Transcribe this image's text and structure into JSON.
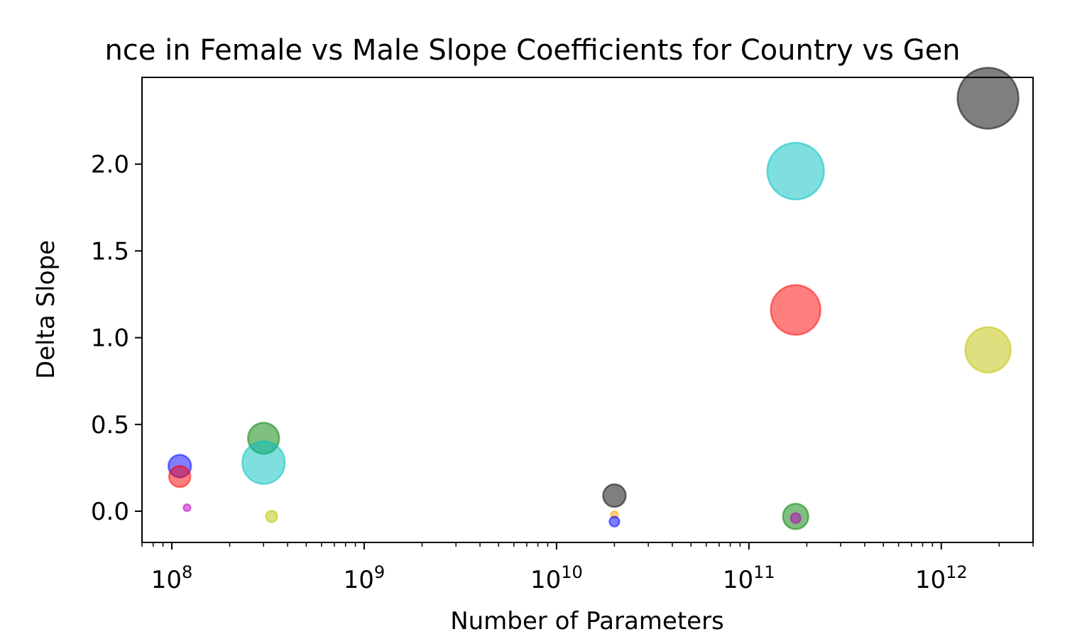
{
  "chart_data": {
    "type": "scatter",
    "title": "nce in Female vs Male Slope Coefficients for Country vs Gen",
    "xlabel": "Number of Parameters",
    "ylabel": "Delta Slope",
    "xscale": "log",
    "xlim": [
      70000000.0,
      3000000000000.0
    ],
    "ylim": [
      -0.18,
      2.5
    ],
    "xticks": [
      {
        "value": 100000000.0,
        "base": "10",
        "exp": "8"
      },
      {
        "value": 1000000000.0,
        "base": "10",
        "exp": "9"
      },
      {
        "value": 10000000000.0,
        "base": "10",
        "exp": "10"
      },
      {
        "value": 100000000000.0,
        "base": "10",
        "exp": "11"
      },
      {
        "value": 1000000000000.0,
        "base": "10",
        "exp": "12"
      }
    ],
    "yticks": [
      "0.0",
      "0.5",
      "1.0",
      "1.5",
      "2.0"
    ],
    "grid": false,
    "legend": "none",
    "points": [
      {
        "x": 110000000.0,
        "y": 0.26,
        "size": 1.6,
        "color": "#0000ff"
      },
      {
        "x": 110000000.0,
        "y": 0.2,
        "size": 1.5,
        "color": "#ff0000"
      },
      {
        "x": 120000000.0,
        "y": 0.02,
        "size": 0.5,
        "color": "#bf00bf"
      },
      {
        "x": 300000000.0,
        "y": 0.42,
        "size": 2.2,
        "color": "#008000"
      },
      {
        "x": 300000000.0,
        "y": 0.28,
        "size": 3.0,
        "color": "#00bfbf"
      },
      {
        "x": 330000000.0,
        "y": -0.03,
        "size": 0.8,
        "color": "#bfbf00"
      },
      {
        "x": 20000000000.0,
        "y": 0.09,
        "size": 1.6,
        "color": "#000000"
      },
      {
        "x": 20000000000.0,
        "y": -0.02,
        "size": 0.5,
        "color": "#ffa500"
      },
      {
        "x": 20000000000.0,
        "y": -0.06,
        "size": 0.7,
        "color": "#0000ff"
      },
      {
        "x": 175000000000.0,
        "y": 1.96,
        "size": 4.0,
        "color": "#00bfbf"
      },
      {
        "x": 175000000000.0,
        "y": 1.16,
        "size": 3.5,
        "color": "#ff0000"
      },
      {
        "x": 175000000000.0,
        "y": -0.03,
        "size": 1.8,
        "color": "#008000"
      },
      {
        "x": 175000000000.0,
        "y": -0.04,
        "size": 0.7,
        "color": "#bf00bf"
      },
      {
        "x": 1750000000000.0,
        "y": 2.38,
        "size": 4.3,
        "color": "#000000"
      },
      {
        "x": 1750000000000.0,
        "y": 0.93,
        "size": 3.2,
        "color": "#bfbf00"
      }
    ]
  }
}
